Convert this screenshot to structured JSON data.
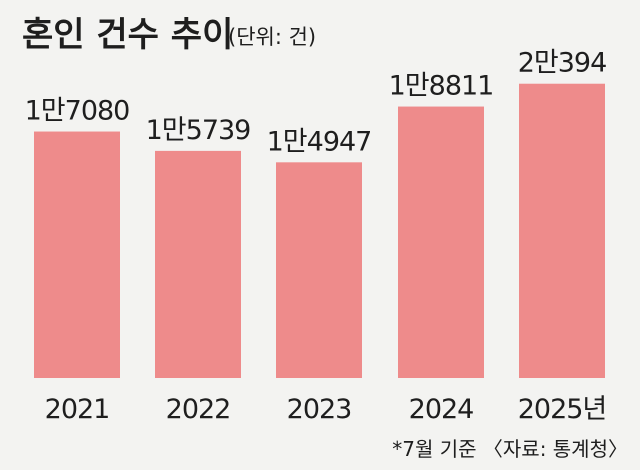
{
  "chart_data": {
    "type": "bar",
    "title": "혼인 건수 추이",
    "unit_label": "(단위: 건)",
    "categories": [
      "2021",
      "2022",
      "2023",
      "2024",
      "2025년"
    ],
    "values": [
      17080,
      15739,
      14947,
      18811,
      20394
    ],
    "value_labels": [
      "1만7080",
      "1만5739",
      "1만4947",
      "1만8811",
      "2만394"
    ],
    "bar_color": "#ee8b8b",
    "footnote": "*7월 기준 〈자료: 통계청〉",
    "grid": false,
    "legend": "none"
  }
}
